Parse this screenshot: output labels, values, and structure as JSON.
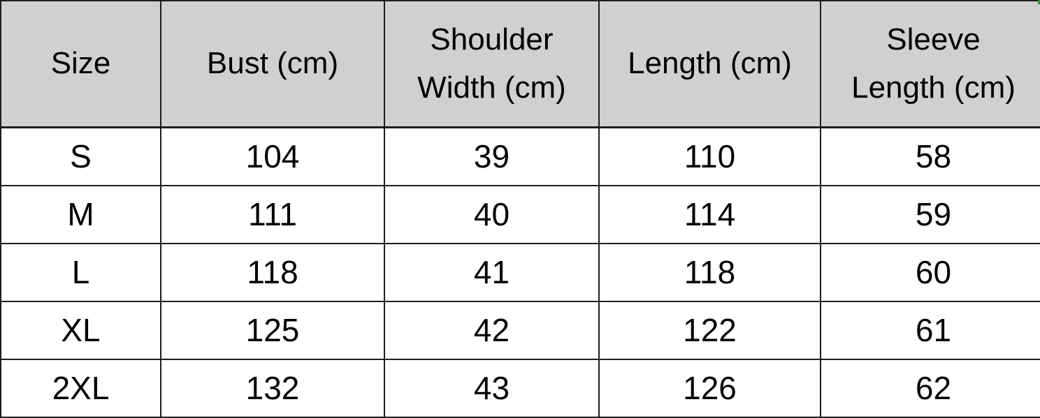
{
  "colors": {
    "header_bg": "#d2d0cf",
    "row_bg": "#ffffff",
    "border": "#1d1d1d",
    "text": "#000000",
    "corner_artifact_green": "#1a9c1f"
  },
  "table": {
    "headers": [
      "Size",
      "Bust (cm)",
      "Shoulder\nWidth (cm)",
      "Length (cm)",
      "Sleeve\nLength (cm)"
    ]
  },
  "chart_data": {
    "type": "table",
    "title": "",
    "columns": [
      "Size",
      "Bust (cm)",
      "Shoulder Width (cm)",
      "Length (cm)",
      "Sleeve Length (cm)"
    ],
    "rows": [
      [
        "S",
        104,
        39,
        110,
        58
      ],
      [
        "M",
        111,
        40,
        114,
        59
      ],
      [
        "L",
        118,
        41,
        118,
        60
      ],
      [
        "XL",
        125,
        42,
        122,
        61
      ],
      [
        "2XL",
        132,
        43,
        126,
        62
      ]
    ],
    "layout_hints": {
      "header_fill": "#d2d0cf",
      "grid": "on",
      "alignment": "center"
    }
  }
}
